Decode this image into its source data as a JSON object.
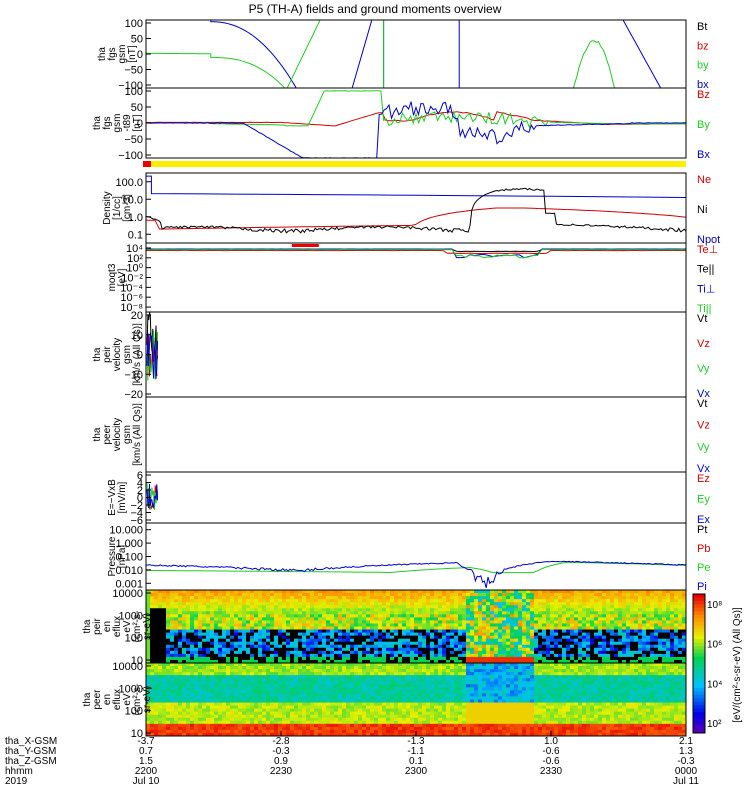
{
  "chart_data": {
    "type": "line",
    "title": "P5 (TH-A) fields and ground moments overview",
    "x": {
      "label": "hhmm",
      "ticks": [
        "2200",
        "2230",
        "2300",
        "2330",
        "0000"
      ],
      "dates": [
        "Jul 10",
        "",
        "",
        "",
        "Jul 11"
      ],
      "year": "2019",
      "extra_rows": [
        {
          "label": "tha_X-GSM",
          "values": [
            "-3.7",
            "-2.8",
            "-1.3",
            "1.0",
            "2.1"
          ]
        },
        {
          "label": "tha_Y-GSM",
          "values": [
            "0.7",
            "-0.3",
            "-1.1",
            "-0.6",
            "1.3"
          ]
        },
        {
          "label": "tha_Z-GSM",
          "values": [
            "1.5",
            "0.9",
            "0.1",
            "-0.6",
            "-0.3"
          ]
        }
      ]
    },
    "panels": [
      {
        "ylabel": [
          "tha",
          "fgs",
          "gsm",
          "[nT]"
        ],
        "yticks": [
          "100",
          "50",
          "0",
          "−50",
          "−100"
        ],
        "ylim": [
          -100,
          100
        ],
        "log": false,
        "legend": [
          {
            "name": "Bt",
            "color": "#000000"
          },
          {
            "name": "bz",
            "color": "#d40000"
          },
          {
            "name": "by",
            "color": "#22cc22"
          },
          {
            "name": "bx",
            "color": "#0000cc"
          }
        ]
      },
      {
        "ylabel": [
          "tha",
          "fgs",
          "gsm",
          "-t89",
          "[nT]"
        ],
        "yticks": [
          "100",
          "50",
          "0",
          "−50",
          "−100"
        ],
        "ylim": [
          -120,
          120
        ],
        "log": false,
        "legend": [
          {
            "name": "Bz",
            "color": "#d40000"
          },
          {
            "name": "By",
            "color": "#22cc22"
          },
          {
            "name": "Bx",
            "color": "#0000cc"
          }
        ]
      },
      {
        "ylabel": [
          "Density",
          "[1/cc]",
          "[cm-3]"
        ],
        "yticks": [
          "100.0",
          "10.0",
          "1.0",
          "0.1"
        ],
        "ylim": [
          0.03,
          300
        ],
        "log": true,
        "legend": [
          {
            "name": "Ne",
            "color": "#d40000"
          },
          {
            "name": "Ni",
            "color": "#000000"
          },
          {
            "name": "Npot",
            "color": "#0000cc"
          }
        ]
      },
      {
        "ylabel": [
          "moqt3",
          "[eV]"
        ],
        "yticks": [
          "10⁴",
          "10²",
          "10⁰",
          "10⁻²",
          "10⁻⁴",
          "10⁻⁶",
          "10⁻⁸"
        ],
        "ylim": [
          1e-09,
          100000.0
        ],
        "log": true,
        "legend": [
          {
            "name": "Te⊥",
            "color": "#d40000"
          },
          {
            "name": "Te||",
            "color": "#000000"
          },
          {
            "name": "Ti⊥",
            "color": "#0000cc"
          },
          {
            "name": "Ti||",
            "color": "#22cc22"
          }
        ]
      },
      {
        "ylabel": [
          "tha",
          "peir",
          "velocity",
          "gsm",
          "[km/s (All Qs)]"
        ],
        "yticks": [
          "20",
          "10",
          "0",
          "−10",
          "−20"
        ],
        "ylim": [
          -20,
          20
        ],
        "log": false,
        "legend": [
          {
            "name": "Vt",
            "color": "#000000"
          },
          {
            "name": "Vz",
            "color": "#d40000"
          },
          {
            "name": "Vy",
            "color": "#22cc22"
          },
          {
            "name": "Vx",
            "color": "#0000cc"
          }
        ]
      },
      {
        "ylabel": [
          "tha",
          "peer",
          "velocity",
          "gsm",
          "[km/s (All Qs)]"
        ],
        "yticks": [],
        "ylim": [
          -20,
          20
        ],
        "log": false,
        "legend": [
          {
            "name": "Vt",
            "color": "#000000"
          },
          {
            "name": "Vz",
            "color": "#d40000"
          },
          {
            "name": "Vy",
            "color": "#22cc22"
          },
          {
            "name": "Vx",
            "color": "#0000cc"
          }
        ]
      },
      {
        "ylabel": [
          "E=−VxB",
          "[mV/m]"
        ],
        "yticks": [
          "6",
          "4",
          "2",
          "0",
          "−2",
          "−4",
          "−6"
        ],
        "ylim": [
          -6,
          6
        ],
        "log": false,
        "legend": [
          {
            "name": "Ez",
            "color": "#d40000"
          },
          {
            "name": "Ey",
            "color": "#22cc22"
          },
          {
            "name": "Ex",
            "color": "#0000cc"
          }
        ]
      },
      {
        "ylabel": [
          "Pressure",
          "[nPa]"
        ],
        "yticks": [
          "10.000",
          "1.000",
          "0.100",
          "0.010",
          "0.001"
        ],
        "ylim": [
          0.001,
          20
        ],
        "log": true,
        "legend": [
          {
            "name": "Pt",
            "color": "#000000"
          },
          {
            "name": "Pb",
            "color": "#d40000"
          },
          {
            "name": "Pe",
            "color": "#22cc22"
          },
          {
            "name": "Pi",
            "color": "#0000cc"
          }
        ]
      },
      {
        "ylabel": [
          "tha",
          "peir",
          "en",
          "eflux",
          "eV",
          "(cm²-s-",
          "sr-eV)"
        ],
        "yticks": [
          "10000",
          "1000",
          "100",
          "10"
        ],
        "ylim": [
          6,
          25000
        ],
        "log": true,
        "legend": []
      },
      {
        "ylabel": [
          "tha",
          "peer",
          "en",
          "eflux",
          "eV",
          "(cm²-s-",
          "sr-eV)"
        ],
        "yticks": [
          "10000",
          "1000",
          "100",
          "10"
        ],
        "ylim": [
          6,
          25000
        ],
        "log": true,
        "legend": []
      }
    ],
    "colorbar": {
      "label": "[eV/(cm²-s-sr-eV) (All Qs)]",
      "ticks": [
        "10⁸",
        "10⁶",
        "10⁴",
        "10²"
      ]
    }
  }
}
